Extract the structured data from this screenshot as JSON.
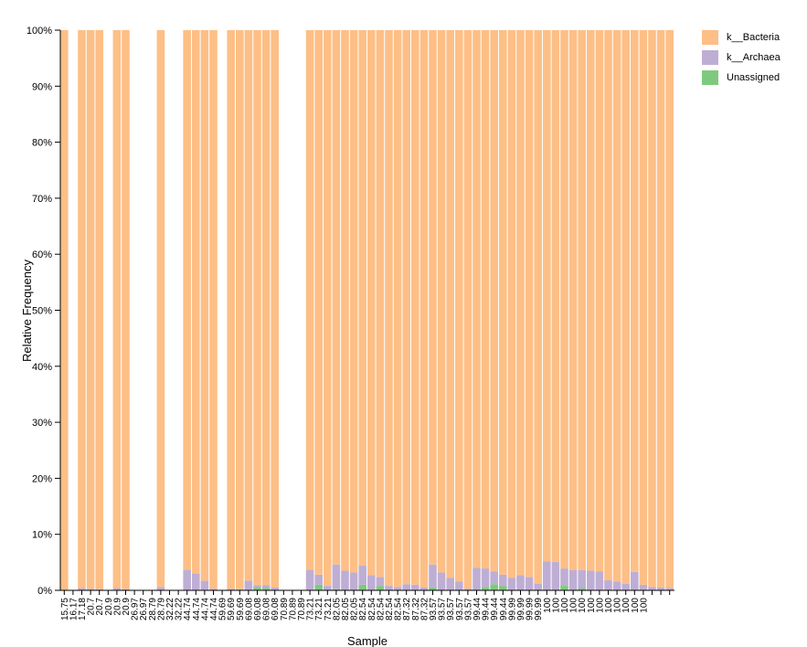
{
  "chart_data": {
    "type": "bar",
    "stacked": true,
    "xlabel": "Sample",
    "ylabel": "Relative Frequency",
    "ylim": [
      0,
      100
    ],
    "yticks": [
      "0%",
      "10%",
      "20%",
      "30%",
      "40%",
      "50%",
      "60%",
      "70%",
      "80%",
      "90%",
      "100%"
    ],
    "categories": [
      "15.75",
      "16.17",
      "17.18",
      "20.7",
      "20.7",
      "20.9",
      "20.9",
      "20.9",
      "26.97",
      "26.97",
      "28.79",
      "28.79",
      "32.22",
      "32.22",
      "44.74",
      "44.74",
      "44.74",
      "44.74",
      "59.69",
      "59.69",
      "59.69",
      "69.08",
      "69.08",
      "69.08",
      "69.08",
      "70.89",
      "70.89",
      "70.89",
      "73.21",
      "73.21",
      "73.21",
      "82.05",
      "82.05",
      "82.05",
      "82.54",
      "82.54",
      "82.54",
      "82.54",
      "82.54",
      "87.32",
      "87.32",
      "87.32",
      "93.57",
      "93.57",
      "93.57",
      "93.57",
      "93.57",
      "99.44",
      "99.44",
      "99.44",
      "99.44",
      "99.99",
      "99.99",
      "99.99",
      "99.99",
      "100",
      "100",
      "100",
      "100",
      "100",
      "100",
      "100",
      "100",
      "100",
      "100",
      "100",
      "100",
      "",
      "",
      ""
    ],
    "present": [
      1,
      0,
      1,
      1,
      1,
      0,
      1,
      1,
      0,
      0,
      0,
      1,
      0,
      0,
      1,
      1,
      1,
      1,
      0,
      1,
      1,
      1,
      1,
      1,
      1,
      0,
      0,
      0,
      1,
      1,
      1,
      1,
      1,
      1,
      1,
      1,
      1,
      1,
      1,
      1,
      1,
      1,
      1,
      1,
      1,
      1,
      1,
      1,
      1,
      1,
      1,
      1,
      1,
      1,
      1,
      1,
      1,
      1,
      1,
      1,
      1,
      1,
      1,
      1,
      1,
      1,
      1,
      1,
      1,
      1
    ],
    "series": [
      {
        "name": "k__Bacteria",
        "color": "#fdbf86",
        "values": [
          100,
          0,
          99.6,
          99.7,
          99.8,
          0,
          99.6,
          99.8,
          0,
          0,
          0,
          99.4,
          0,
          0,
          96.3,
          97,
          98.3,
          99.7,
          0,
          99.7,
          99.8,
          98.3,
          99.1,
          99.1,
          99.5,
          0,
          0,
          0,
          96.3,
          97.2,
          99.2,
          95.4,
          96.5,
          96.8,
          95.6,
          97.3,
          97.6,
          99.2,
          99.4,
          98.9,
          99,
          99.5,
          95.4,
          96.8,
          97.8,
          98.4,
          99.7,
          96,
          96.1,
          96.6,
          97.2,
          97.8,
          97.3,
          97.6,
          98.8,
          94.8,
          94.9,
          96.1,
          96.4,
          96.4,
          96.5,
          96.6,
          98.2,
          98.4,
          98.8,
          96.7,
          99,
          99.4,
          99.5,
          99.6
        ]
      },
      {
        "name": "k__Archaea",
        "color": "#beaed4",
        "values": [
          0,
          0,
          0.4,
          0.3,
          0.2,
          0,
          0.4,
          0.2,
          0,
          0,
          0,
          0.6,
          0,
          0,
          3.7,
          3,
          1.7,
          0.3,
          0,
          0.3,
          0.2,
          1.7,
          0.4,
          0.5,
          0.5,
          0,
          0,
          0,
          3.7,
          1.8,
          0.8,
          4.4,
          3.5,
          3.2,
          3.4,
          2.7,
          1.6,
          0.8,
          0.6,
          1.1,
          1,
          0.5,
          4.1,
          3.2,
          2.2,
          1.6,
          0.3,
          4,
          3.3,
          2.3,
          2,
          2.2,
          2.7,
          2.4,
          1.2,
          5.2,
          5.1,
          3.1,
          3.6,
          3.2,
          3.5,
          3.4,
          1.8,
          1.6,
          1.2,
          3.3,
          1,
          0.6,
          0.5,
          0.4
        ]
      },
      {
        "name": "Unassigned",
        "color": "#7fc97f",
        "values": [
          0,
          0,
          0,
          0,
          0,
          0,
          0,
          0,
          0,
          0,
          0,
          0,
          0,
          0,
          0,
          0,
          0,
          0,
          0,
          0,
          0,
          0,
          0.5,
          0.4,
          0,
          0,
          0,
          0,
          0,
          1,
          0,
          0.2,
          0,
          0,
          1,
          0,
          0.8,
          0,
          0,
          0,
          0,
          0,
          0.5,
          0,
          0,
          0,
          0,
          0,
          0.6,
          1.1,
          0.8,
          0,
          0,
          0,
          0,
          0,
          0,
          0.8,
          0,
          0.4,
          0,
          0,
          0,
          0,
          0,
          0,
          0,
          0,
          0,
          0
        ]
      }
    ],
    "legend": [
      "k__Bacteria",
      "k__Archaea",
      "Unassigned"
    ],
    "legend_position": "top-right"
  }
}
